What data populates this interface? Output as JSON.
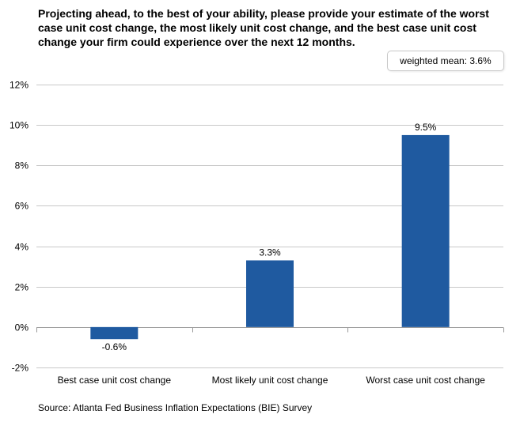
{
  "title": "Projecting ahead, to the best of your ability, please provide your estimate of the worst case unit cost change, the most likely unit cost change, and the best case unit cost change your firm could experience over the next 12 months.",
  "weighted_mean_label": "weighted mean: 3.6%",
  "source": "Source: Atlanta Fed Business Inflation Expectations (BIE) Survey",
  "colors": {
    "bar": "#1f5aa0",
    "grid": "#c8c8c8",
    "axis": "#999999"
  },
  "chart_data": {
    "type": "bar",
    "title": "Projecting ahead, to the best of your ability, please provide your estimate of the worst case unit cost change, the most likely unit cost change, and the best case unit cost change your firm could experience over the next 12 months.",
    "categories": [
      "Best case unit cost change",
      "Most likely unit cost change",
      "Worst case unit cost change"
    ],
    "values": [
      -0.6,
      3.3,
      9.5
    ],
    "data_labels": [
      "-0.6%",
      "3.3%",
      "9.5%"
    ],
    "ylim": [
      -2,
      12
    ],
    "yticks": [
      -2,
      0,
      2,
      4,
      6,
      8,
      10,
      12
    ],
    "ytick_labels": [
      "-2%",
      "0%",
      "2%",
      "4%",
      "6%",
      "8%",
      "10%",
      "12%"
    ],
    "xlabel": "",
    "ylabel": "",
    "grid": true,
    "annotation": "weighted mean: 3.6%"
  }
}
